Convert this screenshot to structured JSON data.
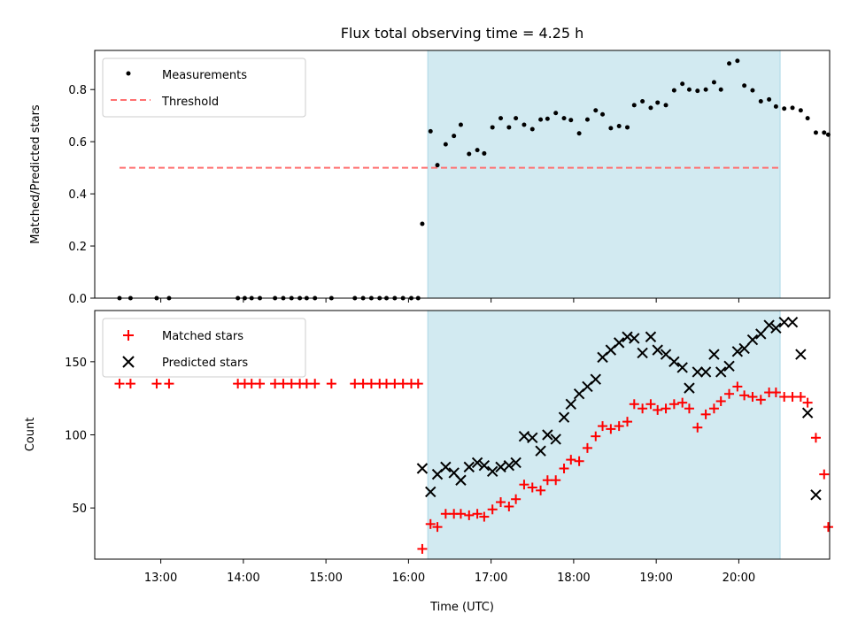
{
  "colors": {
    "shade": "#add8e6",
    "measurements": "#000000",
    "threshold": "#ff7070",
    "matched": "#ff0000",
    "predicted": "#000000"
  },
  "chart_data": [
    {
      "type": "scatter",
      "title": "Flux total observing time = 4.25 h",
      "xlabel": "",
      "ylabel": "Matched/Predicted stars",
      "xlim": [
        "12:12",
        "21:06"
      ],
      "ylim": [
        0,
        0.95
      ],
      "yticks": [
        0.0,
        0.2,
        0.4,
        0.6,
        0.8
      ],
      "ytick_labels": [
        "0.0",
        "0.2",
        "0.4",
        "0.6",
        "0.8"
      ],
      "shaded_span": [
        "16:14",
        "20:30"
      ],
      "legend": {
        "placement": "upper left",
        "entries": [
          "Measurements",
          "Threshold"
        ]
      },
      "threshold": {
        "name": "Threshold",
        "value": 0.5,
        "x_range": [
          "12:30",
          "20:30"
        ]
      },
      "series": [
        {
          "name": "Measurements",
          "points": [
            [
              "12:30",
              0
            ],
            [
              "12:38",
              0
            ],
            [
              "12:57",
              0
            ],
            [
              "13:06",
              0
            ],
            [
              "13:56",
              0
            ],
            [
              "14:01",
              0
            ],
            [
              "14:06",
              0
            ],
            [
              "14:12",
              0
            ],
            [
              "14:23",
              0
            ],
            [
              "14:29",
              0
            ],
            [
              "14:35",
              0
            ],
            [
              "14:41",
              0
            ],
            [
              "14:46",
              0
            ],
            [
              "14:52",
              0
            ],
            [
              "15:04",
              0
            ],
            [
              "15:21",
              0
            ],
            [
              "15:27",
              0
            ],
            [
              "15:33",
              0
            ],
            [
              "15:39",
              0
            ],
            [
              "15:44",
              0
            ],
            [
              "15:50",
              0
            ],
            [
              "15:56",
              0
            ],
            [
              "16:02",
              0
            ],
            [
              "16:07",
              0
            ],
            [
              "16:10",
              0.285
            ],
            [
              "16:16",
              0.64
            ],
            [
              "16:21",
              0.51
            ],
            [
              "16:27",
              0.59
            ],
            [
              "16:33",
              0.622
            ],
            [
              "16:38",
              0.665
            ],
            [
              "16:44",
              0.553
            ],
            [
              "16:50",
              0.568
            ],
            [
              "16:55",
              0.555
            ],
            [
              "17:01",
              0.655
            ],
            [
              "17:07",
              0.69
            ],
            [
              "17:13",
              0.655
            ],
            [
              "17:18",
              0.69
            ],
            [
              "17:24",
              0.665
            ],
            [
              "17:30",
              0.648
            ],
            [
              "17:36",
              0.685
            ],
            [
              "17:41",
              0.688
            ],
            [
              "17:47",
              0.71
            ],
            [
              "17:53",
              0.69
            ],
            [
              "17:58",
              0.683
            ],
            [
              "18:04",
              0.632
            ],
            [
              "18:10",
              0.685
            ],
            [
              "18:16",
              0.72
            ],
            [
              "18:21",
              0.705
            ],
            [
              "18:27",
              0.652
            ],
            [
              "18:33",
              0.66
            ],
            [
              "18:39",
              0.655
            ],
            [
              "18:44",
              0.74
            ],
            [
              "18:50",
              0.755
            ],
            [
              "18:56",
              0.73
            ],
            [
              "19:01",
              0.75
            ],
            [
              "19:07",
              0.74
            ],
            [
              "19:13",
              0.797
            ],
            [
              "19:19",
              0.822
            ],
            [
              "19:24",
              0.8
            ],
            [
              "19:30",
              0.795
            ],
            [
              "19:36",
              0.8
            ],
            [
              "19:42",
              0.828
            ],
            [
              "19:47",
              0.8
            ],
            [
              "19:53",
              0.9
            ],
            [
              "19:59",
              0.91
            ],
            [
              "20:04",
              0.815
            ],
            [
              "20:10",
              0.797
            ],
            [
              "20:16",
              0.755
            ],
            [
              "20:22",
              0.762
            ],
            [
              "20:27",
              0.735
            ],
            [
              "20:33",
              0.727
            ],
            [
              "20:39",
              0.73
            ],
            [
              "20:45",
              0.72
            ],
            [
              "20:50",
              0.69
            ],
            [
              "20:56",
              0.635
            ],
            [
              "21:02",
              0.635
            ],
            [
              "21:05",
              0.627
            ]
          ]
        }
      ]
    },
    {
      "type": "scatter",
      "title": "",
      "xlabel": "Time (UTC)",
      "ylabel": "Count",
      "xlim": [
        "12:12",
        "21:06"
      ],
      "ylim": [
        15,
        185
      ],
      "yticks": [
        50,
        100,
        150
      ],
      "ytick_labels": [
        "50",
        "100",
        "150"
      ],
      "xticks": [
        "13:00",
        "14:00",
        "15:00",
        "16:00",
        "17:00",
        "18:00",
        "19:00",
        "20:00"
      ],
      "shaded_span": [
        "16:14",
        "20:30"
      ],
      "legend": {
        "placement": "upper left",
        "entries": [
          "Matched stars",
          "Predicted stars"
        ]
      },
      "series": [
        {
          "name": "Matched stars",
          "marker": "+",
          "points": [
            [
              "12:30",
              135
            ],
            [
              "12:38",
              135
            ],
            [
              "12:57",
              135
            ],
            [
              "13:06",
              135
            ],
            [
              "13:56",
              135
            ],
            [
              "14:01",
              135
            ],
            [
              "14:06",
              135
            ],
            [
              "14:12",
              135
            ],
            [
              "14:23",
              135
            ],
            [
              "14:29",
              135
            ],
            [
              "14:35",
              135
            ],
            [
              "14:41",
              135
            ],
            [
              "14:46",
              135
            ],
            [
              "14:52",
              135
            ],
            [
              "15:04",
              135
            ],
            [
              "15:21",
              135
            ],
            [
              "15:27",
              135
            ],
            [
              "15:33",
              135
            ],
            [
              "15:39",
              135
            ],
            [
              "15:44",
              135
            ],
            [
              "15:50",
              135
            ],
            [
              "15:56",
              135
            ],
            [
              "16:02",
              135
            ],
            [
              "16:07",
              135
            ],
            [
              "16:10",
              22
            ],
            [
              "16:16",
              39
            ],
            [
              "16:21",
              37
            ],
            [
              "16:27",
              46
            ],
            [
              "16:33",
              46
            ],
            [
              "16:38",
              46
            ],
            [
              "16:44",
              45
            ],
            [
              "16:50",
              46
            ],
            [
              "16:55",
              44
            ],
            [
              "17:01",
              49
            ],
            [
              "17:07",
              54
            ],
            [
              "17:13",
              51
            ],
            [
              "17:18",
              56
            ],
            [
              "17:24",
              66
            ],
            [
              "17:30",
              64
            ],
            [
              "17:36",
              62
            ],
            [
              "17:41",
              69
            ],
            [
              "17:47",
              69
            ],
            [
              "17:53",
              77
            ],
            [
              "17:58",
              83
            ],
            [
              "18:04",
              82
            ],
            [
              "18:10",
              91
            ],
            [
              "18:16",
              99
            ],
            [
              "18:21",
              106
            ],
            [
              "18:27",
              104
            ],
            [
              "18:33",
              106
            ],
            [
              "18:39",
              109
            ],
            [
              "18:44",
              121
            ],
            [
              "18:50",
              118
            ],
            [
              "18:56",
              121
            ],
            [
              "19:01",
              117
            ],
            [
              "19:07",
              118
            ],
            [
              "19:13",
              121
            ],
            [
              "19:19",
              122
            ],
            [
              "19:24",
              118
            ],
            [
              "19:30",
              105
            ],
            [
              "19:36",
              114
            ],
            [
              "19:42",
              118
            ],
            [
              "19:47",
              123
            ],
            [
              "19:53",
              128
            ],
            [
              "19:59",
              133
            ],
            [
              "20:04",
              127
            ],
            [
              "20:10",
              126
            ],
            [
              "20:16",
              124
            ],
            [
              "20:22",
              129
            ],
            [
              "20:27",
              129
            ],
            [
              "20:33",
              126
            ],
            [
              "20:39",
              126
            ],
            [
              "20:45",
              126
            ],
            [
              "20:50",
              122
            ],
            [
              "20:56",
              98
            ],
            [
              "21:02",
              73
            ],
            [
              "21:05",
              37
            ]
          ]
        },
        {
          "name": "Predicted stars",
          "marker": "x",
          "points": [
            [
              "16:10",
              77
            ],
            [
              "16:16",
              61
            ],
            [
              "16:21",
              73
            ],
            [
              "16:27",
              78
            ],
            [
              "16:33",
              74
            ],
            [
              "16:38",
              69
            ],
            [
              "16:44",
              78
            ],
            [
              "16:50",
              81
            ],
            [
              "16:55",
              79
            ],
            [
              "17:01",
              75
            ],
            [
              "17:07",
              78
            ],
            [
              "17:13",
              79
            ],
            [
              "17:18",
              81
            ],
            [
              "17:24",
              99
            ],
            [
              "17:30",
              98
            ],
            [
              "17:36",
              89
            ],
            [
              "17:41",
              100
            ],
            [
              "17:47",
              97
            ],
            [
              "17:53",
              112
            ],
            [
              "17:58",
              121
            ],
            [
              "18:04",
              128
            ],
            [
              "18:10",
              133
            ],
            [
              "18:16",
              138
            ],
            [
              "18:21",
              153
            ],
            [
              "18:27",
              158
            ],
            [
              "18:33",
              163
            ],
            [
              "18:39",
              167
            ],
            [
              "18:44",
              166
            ],
            [
              "18:50",
              156
            ],
            [
              "18:56",
              167
            ],
            [
              "19:01",
              158
            ],
            [
              "19:07",
              155
            ],
            [
              "19:13",
              150
            ],
            [
              "19:19",
              146
            ],
            [
              "19:24",
              132
            ],
            [
              "19:30",
              143
            ],
            [
              "19:36",
              143
            ],
            [
              "19:42",
              155
            ],
            [
              "19:47",
              143
            ],
            [
              "19:53",
              147
            ],
            [
              "19:59",
              157
            ],
            [
              "20:04",
              159
            ],
            [
              "20:10",
              165
            ],
            [
              "20:16",
              169
            ],
            [
              "20:22",
              175
            ],
            [
              "20:27",
              173
            ],
            [
              "20:33",
              177
            ],
            [
              "20:39",
              177
            ],
            [
              "20:45",
              155
            ],
            [
              "20:50",
              115
            ],
            [
              "20:56",
              59
            ]
          ]
        }
      ]
    }
  ]
}
